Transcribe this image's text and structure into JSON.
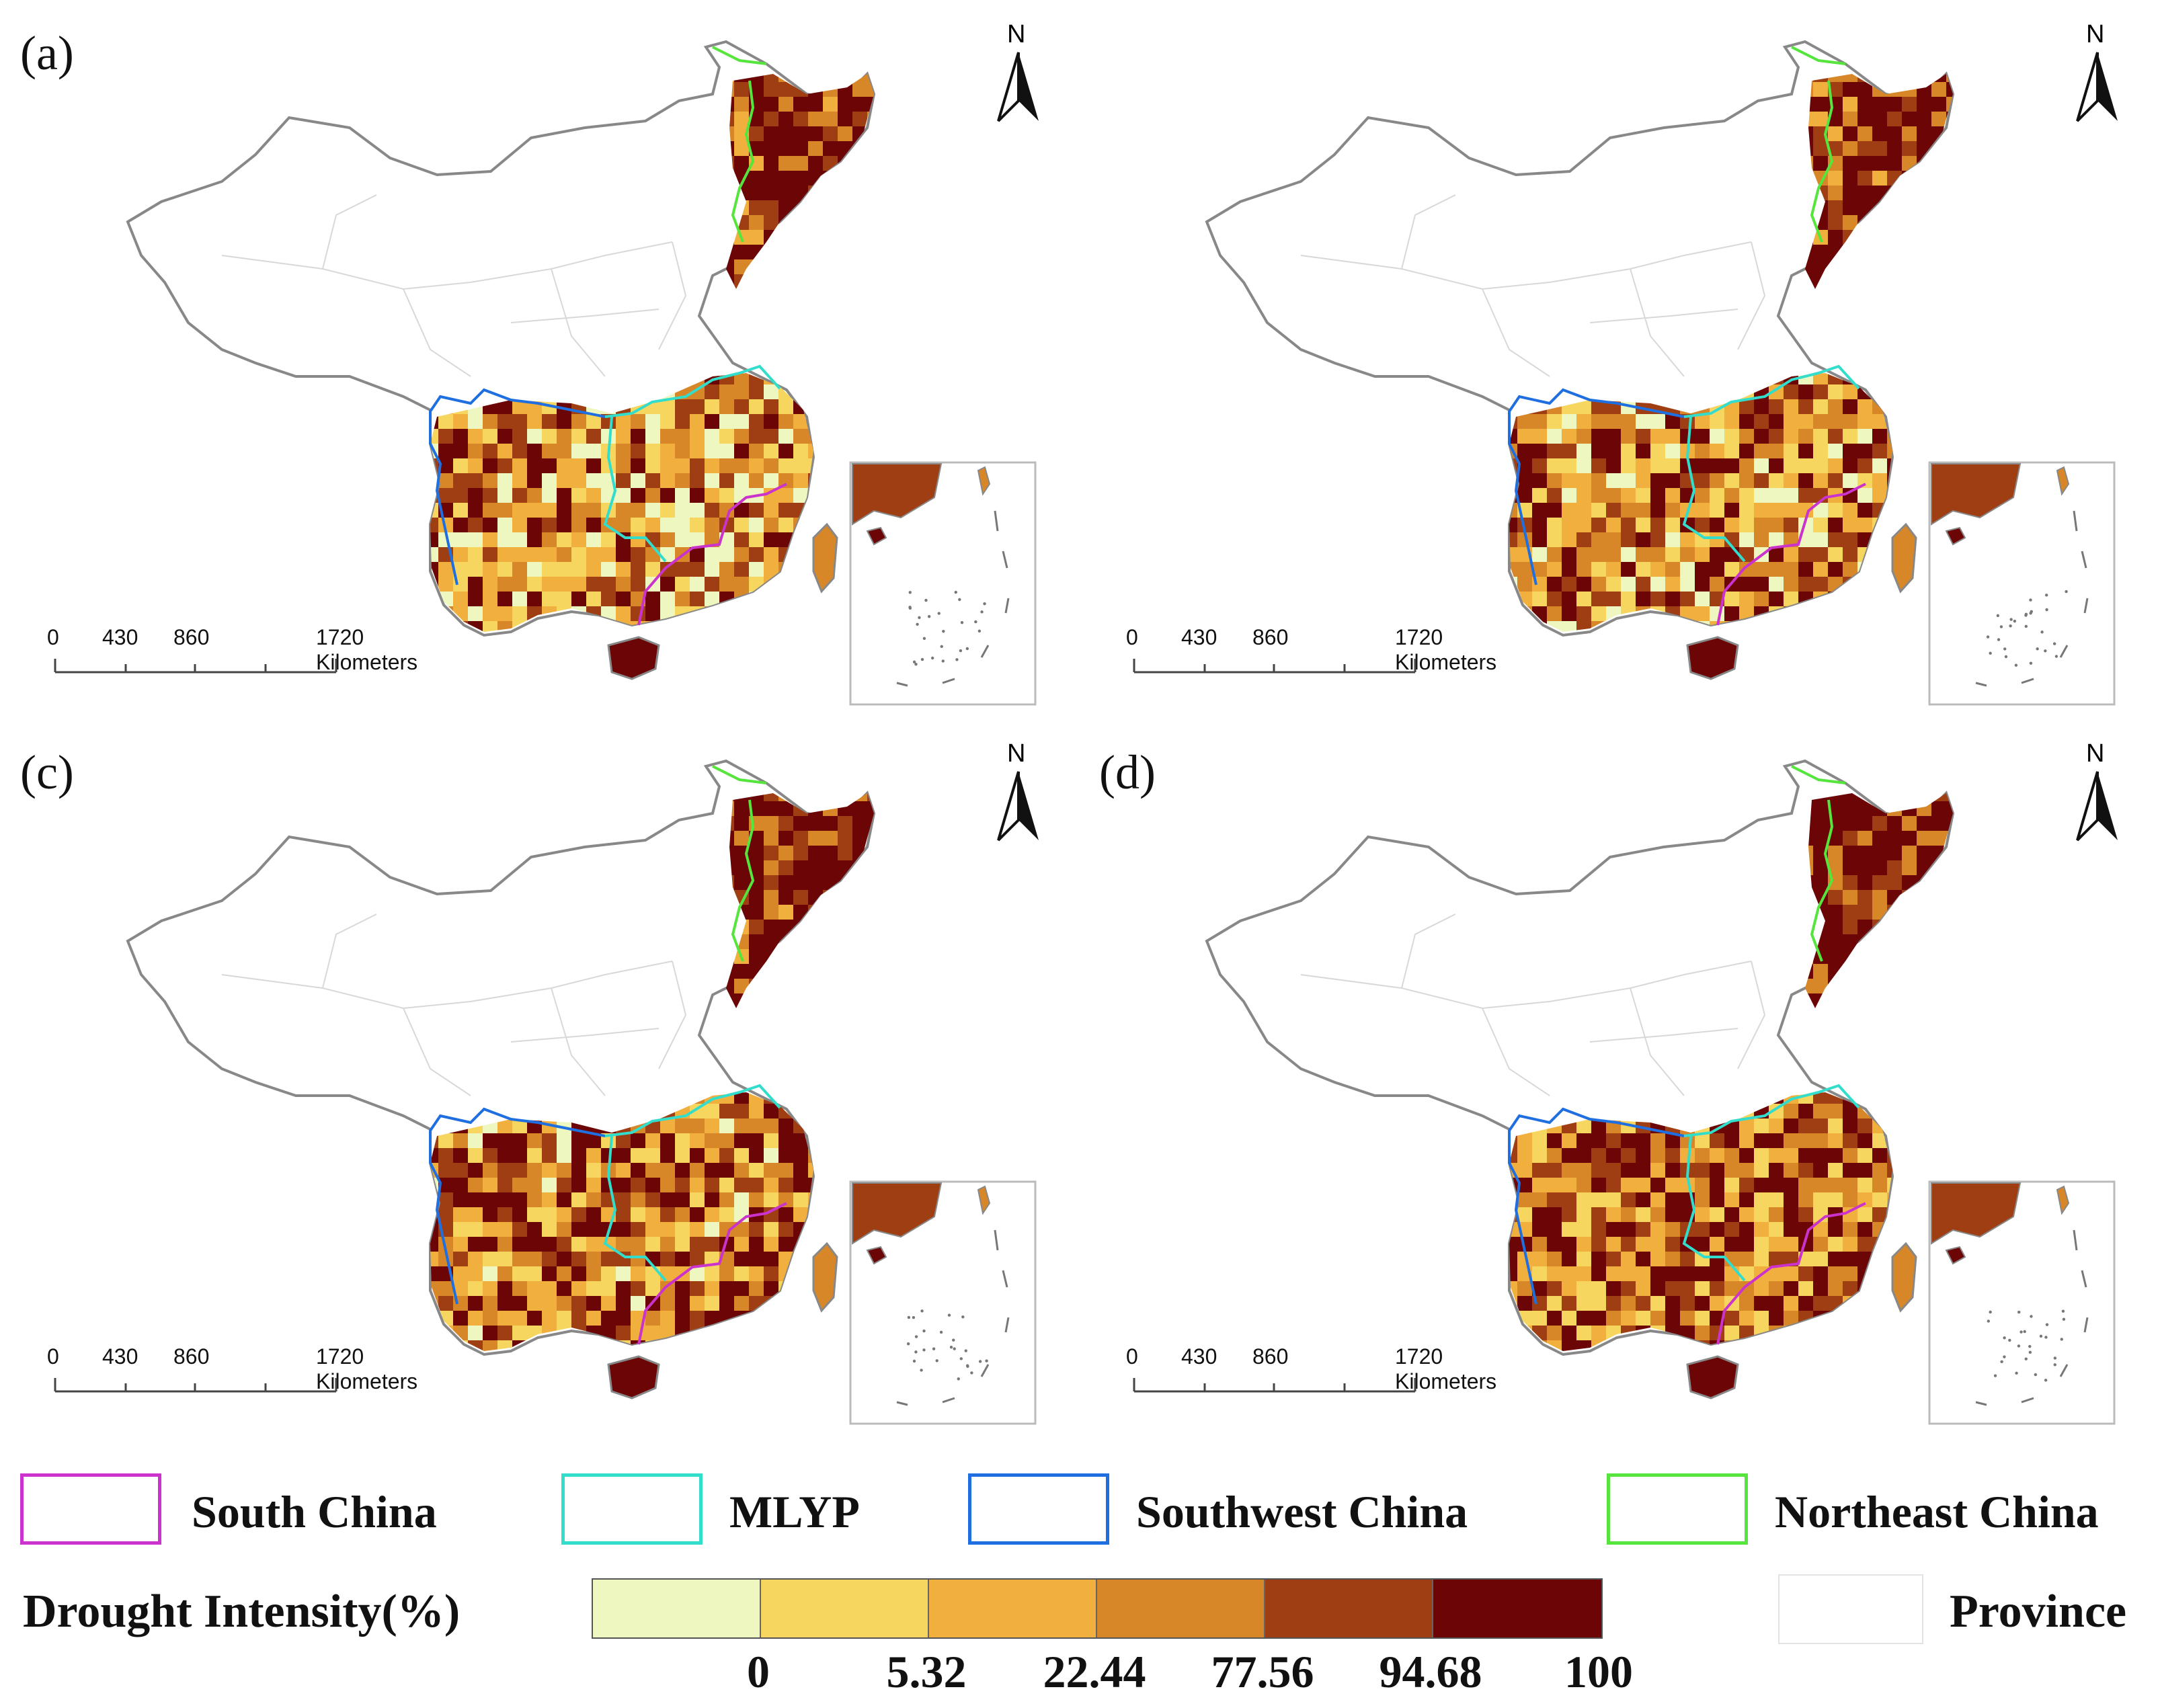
{
  "panels": [
    {
      "label": "(a)",
      "seed": 11,
      "bias": 0.0
    },
    {
      "label": "",
      "seed": 23,
      "bias": 0.15
    },
    {
      "label": "(c)",
      "seed": 37,
      "bias": 0.35
    },
    {
      "label": "(d)",
      "seed": 53,
      "bias": 0.5
    }
  ],
  "north_label": "N",
  "scale_bar": {
    "ticks": [
      "0",
      "430",
      "860",
      "1720 Kilometers"
    ]
  },
  "legend": {
    "regions": [
      {
        "name": "South China",
        "color": "#cc33cc"
      },
      {
        "name": "MLYP",
        "color": "#33ddcc"
      },
      {
        "name": "Southwest China",
        "color": "#1f6fe0"
      },
      {
        "name": "Northeast China",
        "color": "#55e53c"
      }
    ],
    "drought_title": "Drought Intensity(%)",
    "breaks": [
      "0",
      "5.32",
      "22.44",
      "77.56",
      "94.68",
      "100"
    ],
    "colors": [
      "#eef7c0",
      "#f7d65f",
      "#f1b03e",
      "#d78628",
      "#9e3e12",
      "#6b0506"
    ],
    "province_label": "Province"
  }
}
